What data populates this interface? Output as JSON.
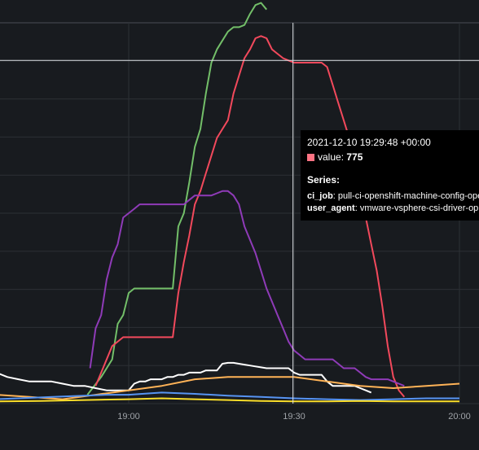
{
  "chart_data": {
    "type": "line",
    "x_ticks": [
      "19:00",
      "19:30",
      "20:00"
    ],
    "x_range_minutes": [
      -24,
      34
    ],
    "y_max": 860,
    "crosshair": {
      "time_minutes": 29.8,
      "value": 775
    },
    "series": [
      {
        "color": "#73bf69",
        "points": [
          [
            -7.5,
            20
          ],
          [
            -5,
            60
          ],
          [
            -3,
            100
          ],
          [
            -2,
            180
          ],
          [
            -1,
            200
          ],
          [
            0,
            250
          ],
          [
            1,
            260
          ],
          [
            2,
            260
          ],
          [
            3,
            260
          ],
          [
            5,
            260
          ],
          [
            7,
            260
          ],
          [
            8,
            260
          ],
          [
            9,
            400
          ],
          [
            10,
            430
          ],
          [
            11,
            500
          ],
          [
            12,
            580
          ],
          [
            13,
            620
          ],
          [
            14,
            700
          ],
          [
            15,
            770
          ],
          [
            16,
            800
          ],
          [
            17,
            820
          ],
          [
            18,
            840
          ],
          [
            19,
            850
          ],
          [
            20,
            850
          ],
          [
            21,
            855
          ],
          [
            22,
            880
          ],
          [
            23,
            900
          ],
          [
            24,
            905
          ],
          [
            25,
            890
          ]
        ]
      },
      {
        "color": "#f2495c",
        "points": [
          [
            -6,
            40
          ],
          [
            -5,
            70
          ],
          [
            -3,
            130
          ],
          [
            -1,
            150
          ],
          [
            0,
            150
          ],
          [
            1,
            150
          ],
          [
            3,
            150
          ],
          [
            5,
            150
          ],
          [
            8,
            150
          ],
          [
            9,
            250
          ],
          [
            10,
            320
          ],
          [
            11,
            380
          ],
          [
            12,
            450
          ],
          [
            13,
            480
          ],
          [
            14,
            520
          ],
          [
            15,
            560
          ],
          [
            16,
            600
          ],
          [
            17,
            620
          ],
          [
            18,
            640
          ],
          [
            19,
            700
          ],
          [
            20,
            740
          ],
          [
            21,
            780
          ],
          [
            22,
            800
          ],
          [
            23,
            825
          ],
          [
            24,
            830
          ],
          [
            25,
            825
          ],
          [
            26,
            800
          ],
          [
            27,
            790
          ],
          [
            28,
            780
          ],
          [
            29,
            775
          ],
          [
            30,
            770
          ],
          [
            31,
            770
          ],
          [
            32,
            770
          ],
          [
            33,
            770
          ],
          [
            34,
            770
          ],
          [
            35,
            770
          ],
          [
            36,
            760
          ],
          [
            37,
            720
          ],
          [
            38,
            680
          ],
          [
            39,
            640
          ],
          [
            40,
            600
          ],
          [
            41,
            560
          ],
          [
            42,
            500
          ],
          [
            43,
            420
          ],
          [
            44,
            360
          ],
          [
            45,
            300
          ],
          [
            46,
            220
          ],
          [
            47,
            130
          ],
          [
            48,
            60
          ],
          [
            49,
            30
          ],
          [
            50,
            15
          ]
        ]
      },
      {
        "color": "#8f3bb8",
        "points": [
          [
            -7,
            80
          ],
          [
            -6,
            170
          ],
          [
            -5,
            200
          ],
          [
            -4,
            280
          ],
          [
            -3,
            330
          ],
          [
            -2,
            360
          ],
          [
            -1,
            420
          ],
          [
            0,
            430
          ],
          [
            1,
            440
          ],
          [
            2,
            450
          ],
          [
            3,
            450
          ],
          [
            4,
            450
          ],
          [
            5,
            450
          ],
          [
            6,
            450
          ],
          [
            7,
            450
          ],
          [
            8,
            450
          ],
          [
            9,
            450
          ],
          [
            10,
            450
          ],
          [
            11,
            460
          ],
          [
            12,
            470
          ],
          [
            13,
            470
          ],
          [
            14,
            470
          ],
          [
            15,
            470
          ],
          [
            16,
            475
          ],
          [
            17,
            480
          ],
          [
            18,
            480
          ],
          [
            19,
            470
          ],
          [
            20,
            450
          ],
          [
            21,
            400
          ],
          [
            22,
            370
          ],
          [
            23,
            340
          ],
          [
            24,
            300
          ],
          [
            25,
            260
          ],
          [
            26,
            230
          ],
          [
            27,
            200
          ],
          [
            28,
            170
          ],
          [
            29,
            140
          ],
          [
            30,
            120
          ],
          [
            31,
            110
          ],
          [
            32,
            100
          ],
          [
            33,
            100
          ],
          [
            34,
            100
          ],
          [
            35,
            100
          ],
          [
            36,
            100
          ],
          [
            37,
            100
          ],
          [
            38,
            90
          ],
          [
            39,
            80
          ],
          [
            40,
            80
          ],
          [
            41,
            80
          ],
          [
            42,
            70
          ],
          [
            43,
            60
          ],
          [
            44,
            55
          ],
          [
            45,
            55
          ],
          [
            46,
            55
          ],
          [
            47,
            55
          ],
          [
            48,
            50
          ],
          [
            49,
            45
          ],
          [
            50,
            40
          ]
        ]
      },
      {
        "color": "#ffffff",
        "points": [
          [
            -24,
            70
          ],
          [
            -22,
            60
          ],
          [
            -20,
            55
          ],
          [
            -18,
            50
          ],
          [
            -16,
            50
          ],
          [
            -14,
            50
          ],
          [
            -12,
            45
          ],
          [
            -10,
            40
          ],
          [
            -8,
            40
          ],
          [
            -6,
            35
          ],
          [
            -4,
            30
          ],
          [
            0,
            30
          ],
          [
            1,
            45
          ],
          [
            2,
            50
          ],
          [
            3,
            50
          ],
          [
            4,
            55
          ],
          [
            5,
            55
          ],
          [
            6,
            55
          ],
          [
            7,
            60
          ],
          [
            8,
            60
          ],
          [
            9,
            65
          ],
          [
            10,
            65
          ],
          [
            11,
            70
          ],
          [
            12,
            70
          ],
          [
            13,
            70
          ],
          [
            14,
            75
          ],
          [
            15,
            75
          ],
          [
            16,
            75
          ],
          [
            17,
            90
          ],
          [
            18,
            92
          ],
          [
            19,
            92
          ],
          [
            20,
            90
          ],
          [
            21,
            88
          ],
          [
            22,
            86
          ],
          [
            23,
            84
          ],
          [
            24,
            82
          ],
          [
            25,
            80
          ],
          [
            26,
            80
          ],
          [
            27,
            80
          ],
          [
            28,
            80
          ],
          [
            29,
            80
          ],
          [
            30,
            70
          ],
          [
            31,
            65
          ],
          [
            32,
            65
          ],
          [
            33,
            65
          ],
          [
            34,
            65
          ],
          [
            35,
            65
          ],
          [
            36,
            50
          ],
          [
            37,
            40
          ],
          [
            38,
            40
          ],
          [
            39,
            40
          ],
          [
            40,
            40
          ],
          [
            41,
            40
          ],
          [
            42,
            35
          ],
          [
            43,
            30
          ],
          [
            44,
            25
          ]
        ]
      },
      {
        "color": "#ffb357",
        "points": [
          [
            -24,
            20
          ],
          [
            -18,
            15
          ],
          [
            -12,
            10
          ],
          [
            -6,
            20
          ],
          [
            0,
            30
          ],
          [
            6,
            40
          ],
          [
            12,
            55
          ],
          [
            18,
            60
          ],
          [
            24,
            60
          ],
          [
            30,
            60
          ],
          [
            36,
            50
          ],
          [
            42,
            40
          ],
          [
            48,
            35
          ],
          [
            54,
            40
          ],
          [
            60,
            45
          ]
        ]
      },
      {
        "color": "#5794f2",
        "points": [
          [
            -24,
            10
          ],
          [
            -20,
            12
          ],
          [
            -16,
            14
          ],
          [
            -12,
            16
          ],
          [
            -8,
            18
          ],
          [
            -4,
            20
          ],
          [
            0,
            20
          ],
          [
            6,
            25
          ],
          [
            12,
            22
          ],
          [
            18,
            18
          ],
          [
            24,
            15
          ],
          [
            30,
            12
          ],
          [
            36,
            10
          ],
          [
            42,
            8
          ],
          [
            48,
            10
          ],
          [
            54,
            12
          ],
          [
            60,
            12
          ]
        ]
      },
      {
        "color": "#fade2a",
        "points": [
          [
            -24,
            5
          ],
          [
            -16,
            6
          ],
          [
            -8,
            8
          ],
          [
            0,
            10
          ],
          [
            6,
            12
          ],
          [
            12,
            10
          ],
          [
            18,
            8
          ],
          [
            24,
            6
          ],
          [
            30,
            5
          ],
          [
            36,
            5
          ],
          [
            42,
            6
          ],
          [
            48,
            5
          ],
          [
            54,
            5
          ],
          [
            60,
            5
          ]
        ]
      }
    ]
  },
  "tooltip": {
    "timestamp": "2021-12-10 19:29:48 +00:00",
    "value_label": "value:",
    "value": "775",
    "swatch_color": "#ff7383",
    "series_title": "Series:",
    "labels": [
      {
        "key": "ci_job",
        "value": "pull-ci-openshift-machine-config-ope"
      },
      {
        "key": "user_agent",
        "value": "vmware-vsphere-csi-driver-op"
      }
    ]
  },
  "colors": {
    "background": "#181b1f",
    "grid": "#2c3035",
    "axis_label": "#9fa3a8",
    "crosshair": "#dcdfe3"
  }
}
